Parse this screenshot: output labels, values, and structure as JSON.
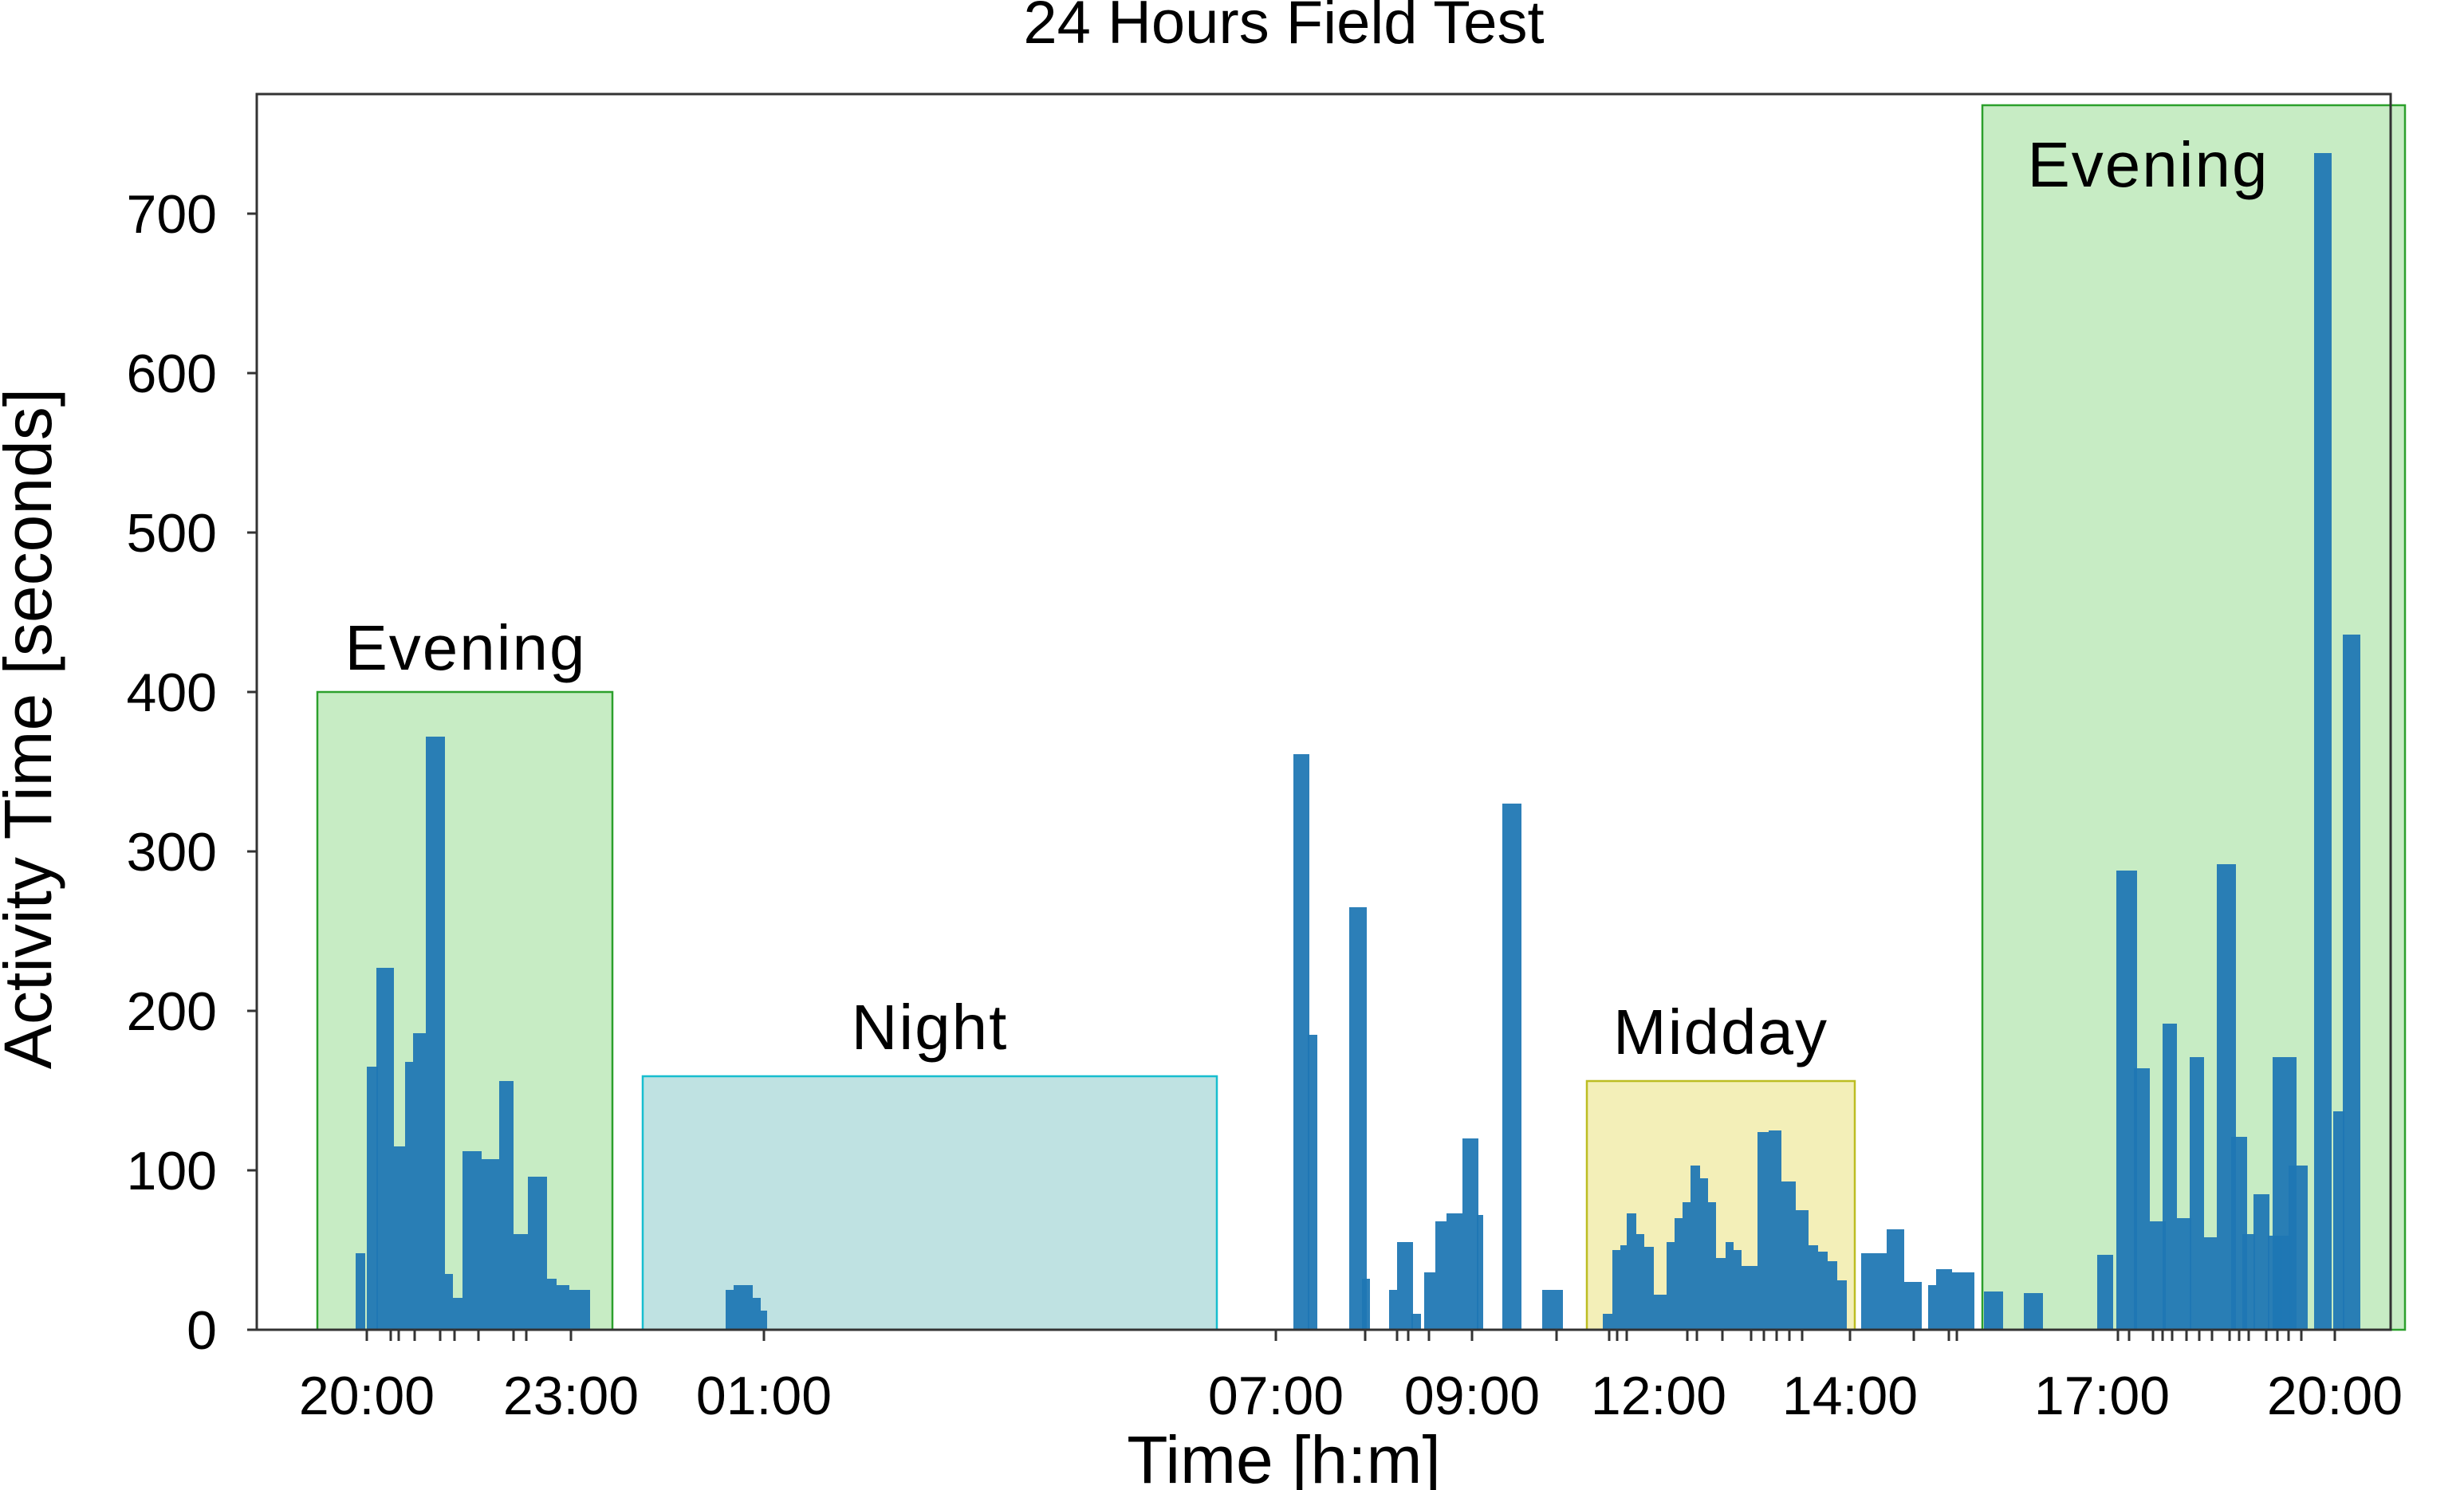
{
  "chart_data": {
    "type": "bar",
    "title": "24 Hours Field Test",
    "xlabel": "Time [h:m]",
    "ylabel": "Activity Time [seconds]",
    "ylim": [
      0,
      780
    ],
    "yticks": [
      0,
      100,
      200,
      300,
      400,
      500,
      600,
      700
    ],
    "x_tick_labels": [
      "20:00",
      "23:00",
      "01:00",
      "07:00",
      "09:00",
      "12:00",
      "14:00",
      "17:00",
      "20:00"
    ],
    "grid": false,
    "bar_color": "#1f77b4",
    "regions": [
      {
        "label": "Evening",
        "y_top": 400,
        "fill": "#c7ecc4",
        "stroke": "#2ca02c"
      },
      {
        "label": "Night",
        "y_top": 159,
        "fill": "#bfe2e2",
        "stroke": "#17becf"
      },
      {
        "label": "Midday",
        "y_top": 156,
        "fill": "#f3efb8",
        "stroke": "#bcbd22"
      },
      {
        "label": "Evening",
        "y_top": 768,
        "fill": "#c7ecc4",
        "stroke": "#2ca02c"
      }
    ],
    "values": [
      48,
      165,
      227,
      115,
      168,
      186,
      372,
      35,
      20,
      112,
      107,
      107,
      156,
      60,
      96,
      32,
      28,
      25,
      25,
      25,
      28,
      28,
      20,
      12,
      361,
      185,
      265,
      32,
      25,
      55,
      10,
      36,
      68,
      73,
      73,
      120,
      72,
      330,
      25,
      10,
      50,
      53,
      73,
      60,
      52,
      22,
      55,
      70,
      80,
      103,
      95,
      80,
      45,
      55,
      50,
      40,
      124,
      125,
      93,
      75,
      53,
      49,
      43,
      31,
      48,
      48,
      63,
      30,
      28,
      38,
      36,
      24,
      23,
      47,
      288,
      164,
      68,
      192,
      70,
      171,
      58,
      292,
      121,
      60,
      85,
      59,
      59,
      171,
      103,
      738,
      137,
      436
    ]
  }
}
